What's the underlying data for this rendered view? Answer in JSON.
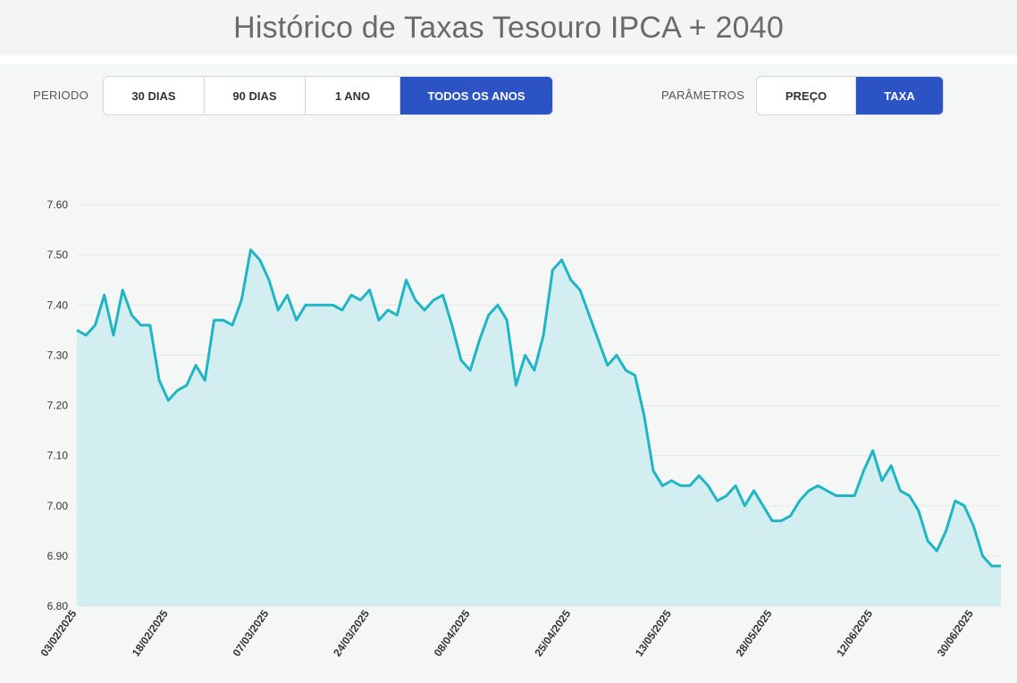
{
  "title": "Histórico de Taxas Tesouro IPCA + 2040",
  "controls": {
    "period_label": "PERIODO",
    "period_options": [
      "30 DIAS",
      "90 DIAS",
      "1 ANO",
      "TODOS OS ANOS"
    ],
    "period_selected": "TODOS OS ANOS",
    "params_label": "PARÂMETROS",
    "params_options": [
      "PREÇO",
      "TAXA"
    ],
    "params_selected": "TAXA"
  },
  "colors": {
    "line": "#1fb5c4",
    "fill": "#d2eef0",
    "accent": "#2b53c3",
    "grid": "#e4e8ea"
  },
  "chart_data": {
    "type": "area",
    "ylim": [
      6.8,
      7.6
    ],
    "y_ticks": [
      "6.80",
      "6.90",
      "7.00",
      "7.10",
      "7.20",
      "7.30",
      "7.40",
      "7.50",
      "7.60"
    ],
    "x_tick_labels": [
      {
        "label": "03/02/2025",
        "index": 0
      },
      {
        "label": "18/02/2025",
        "index": 10
      },
      {
        "label": "07/03/2025",
        "index": 21
      },
      {
        "label": "24/03/2025",
        "index": 32
      },
      {
        "label": "08/04/2025",
        "index": 43
      },
      {
        "label": "25/04/2025",
        "index": 54
      },
      {
        "label": "13/05/2025",
        "index": 65
      },
      {
        "label": "28/05/2025",
        "index": 76
      },
      {
        "label": "12/06/2025",
        "index": 87
      },
      {
        "label": "30/06/2025",
        "index": 98
      }
    ],
    "grid": true,
    "values": [
      7.35,
      7.34,
      7.36,
      7.42,
      7.34,
      7.43,
      7.38,
      7.36,
      7.36,
      7.25,
      7.21,
      7.23,
      7.24,
      7.28,
      7.25,
      7.37,
      7.37,
      7.36,
      7.41,
      7.51,
      7.49,
      7.45,
      7.39,
      7.42,
      7.37,
      7.4,
      7.4,
      7.4,
      7.4,
      7.39,
      7.42,
      7.41,
      7.43,
      7.37,
      7.39,
      7.38,
      7.45,
      7.41,
      7.39,
      7.41,
      7.42,
      7.36,
      7.29,
      7.27,
      7.33,
      7.38,
      7.4,
      7.37,
      7.24,
      7.3,
      7.27,
      7.34,
      7.47,
      7.49,
      7.45,
      7.43,
      7.38,
      7.33,
      7.28,
      7.3,
      7.27,
      7.26,
      7.18,
      7.07,
      7.04,
      7.05,
      7.04,
      7.04,
      7.06,
      7.04,
      7.01,
      7.02,
      7.04,
      7.0,
      7.03,
      7.0,
      6.97,
      6.97,
      6.98,
      7.01,
      7.03,
      7.04,
      7.03,
      7.02,
      7.02,
      7.02,
      7.07,
      7.11,
      7.05,
      7.08,
      7.03,
      7.02,
      6.99,
      6.93,
      6.91,
      6.95,
      7.01,
      7.0,
      6.96,
      6.9,
      6.88,
      6.88
    ]
  }
}
